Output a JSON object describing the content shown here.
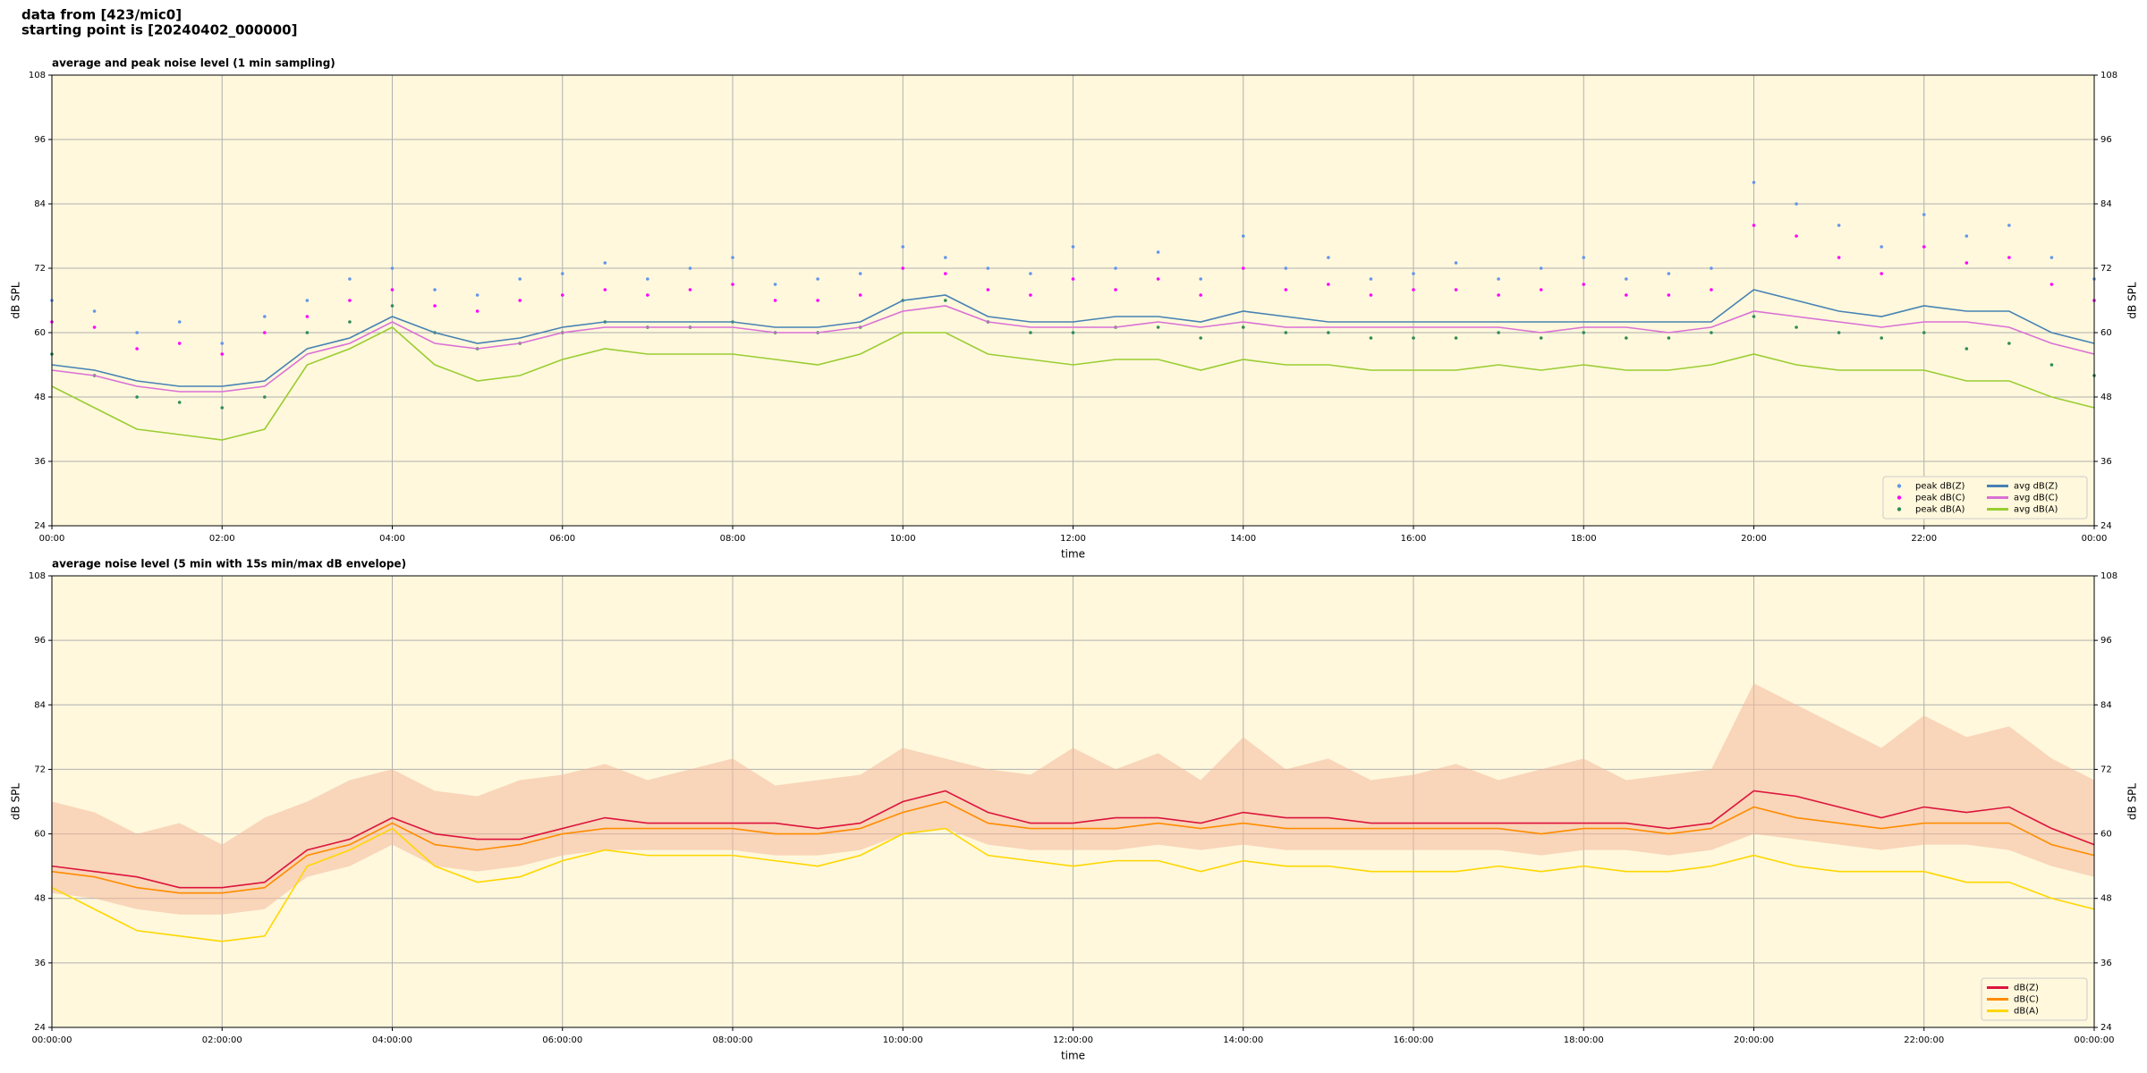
{
  "header": {
    "line1": "data from [423/mic0]",
    "line2": "starting point is [20240402_000000]"
  },
  "chart_data": [
    {
      "type": "line",
      "title": "average and peak noise level (1 min sampling)",
      "xlabel": "time",
      "ylabel": "dB SPL",
      "background": "#fff8dc",
      "grid": true,
      "legend": "lower right",
      "legend_columns": 2,
      "xlim": [
        0,
        24
      ],
      "ylim": [
        24,
        108
      ],
      "yticks": [
        24,
        36,
        48,
        60,
        72,
        84,
        96,
        108
      ],
      "xticks": [
        {
          "value": 0,
          "label": "00:00"
        },
        {
          "value": 2,
          "label": "02:00"
        },
        {
          "value": 4,
          "label": "04:00"
        },
        {
          "value": 6,
          "label": "06:00"
        },
        {
          "value": 8,
          "label": "08:00"
        },
        {
          "value": 10,
          "label": "10:00"
        },
        {
          "value": 12,
          "label": "12:00"
        },
        {
          "value": 14,
          "label": "14:00"
        },
        {
          "value": 16,
          "label": "16:00"
        },
        {
          "value": 18,
          "label": "18:00"
        },
        {
          "value": 20,
          "label": "20:00"
        },
        {
          "value": 22,
          "label": "22:00"
        },
        {
          "value": 24,
          "label": "00:00"
        }
      ],
      "x": [
        0,
        0.5,
        1,
        1.5,
        2,
        2.5,
        3,
        3.5,
        4,
        4.5,
        5,
        5.5,
        6,
        6.5,
        7,
        7.5,
        8,
        8.5,
        9,
        9.5,
        10,
        10.5,
        11,
        11.5,
        12,
        12.5,
        13,
        13.5,
        14,
        14.5,
        15,
        15.5,
        16,
        16.5,
        17,
        17.5,
        18,
        18.5,
        19,
        19.5,
        20,
        20.5,
        21,
        21.5,
        22,
        22.5,
        23,
        23.5,
        24
      ],
      "series": [
        {
          "name": "peak dB(Z)",
          "type": "scatter",
          "color": "#6495ed",
          "values": [
            66,
            64,
            60,
            62,
            58,
            63,
            66,
            70,
            72,
            68,
            67,
            70,
            71,
            73,
            70,
            72,
            74,
            69,
            70,
            71,
            76,
            74,
            72,
            71,
            76,
            72,
            75,
            70,
            78,
            72,
            74,
            70,
            71,
            73,
            70,
            72,
            74,
            70,
            71,
            72,
            88,
            84,
            80,
            76,
            82,
            78,
            80,
            74,
            70
          ]
        },
        {
          "name": "peak dB(C)",
          "type": "scatter",
          "color": "#ff00ff",
          "values": [
            62,
            61,
            57,
            58,
            56,
            60,
            63,
            66,
            68,
            65,
            64,
            66,
            67,
            68,
            67,
            68,
            69,
            66,
            66,
            67,
            72,
            71,
            68,
            67,
            70,
            68,
            70,
            67,
            72,
            68,
            69,
            67,
            68,
            68,
            67,
            68,
            69,
            67,
            67,
            68,
            80,
            78,
            74,
            71,
            76,
            73,
            74,
            69,
            66
          ]
        },
        {
          "name": "peak dB(A)",
          "type": "scatter",
          "color": "#2e8b57",
          "values": [
            56,
            52,
            48,
            47,
            46,
            48,
            60,
            62,
            65,
            60,
            57,
            58,
            60,
            62,
            61,
            61,
            62,
            60,
            60,
            61,
            66,
            66,
            62,
            60,
            60,
            61,
            61,
            59,
            61,
            60,
            60,
            59,
            59,
            59,
            60,
            59,
            60,
            59,
            59,
            60,
            63,
            61,
            60,
            59,
            60,
            57,
            58,
            54,
            52
          ]
        },
        {
          "name": "avg dB(Z)",
          "type": "line",
          "color": "#4682b4",
          "values": [
            54,
            53,
            51,
            50,
            50,
            51,
            57,
            59,
            63,
            60,
            58,
            59,
            61,
            62,
            62,
            62,
            62,
            61,
            61,
            62,
            66,
            67,
            63,
            62,
            62,
            63,
            63,
            62,
            64,
            63,
            62,
            62,
            62,
            62,
            62,
            62,
            62,
            62,
            62,
            62,
            68,
            66,
            64,
            63,
            65,
            64,
            64,
            60,
            58
          ]
        },
        {
          "name": "avg dB(C)",
          "type": "line",
          "color": "#da70d6",
          "values": [
            53,
            52,
            50,
            49,
            49,
            50,
            56,
            58,
            62,
            58,
            57,
            58,
            60,
            61,
            61,
            61,
            61,
            60,
            60,
            61,
            64,
            65,
            62,
            61,
            61,
            61,
            62,
            61,
            62,
            61,
            61,
            61,
            61,
            61,
            61,
            60,
            61,
            61,
            60,
            61,
            64,
            63,
            62,
            61,
            62,
            62,
            61,
            58,
            56
          ]
        },
        {
          "name": "avg dB(A)",
          "type": "line",
          "color": "#9acd32",
          "values": [
            50,
            46,
            42,
            41,
            40,
            42,
            54,
            57,
            61,
            54,
            51,
            52,
            55,
            57,
            56,
            56,
            56,
            55,
            54,
            56,
            60,
            60,
            56,
            55,
            54,
            55,
            55,
            53,
            55,
            54,
            54,
            53,
            53,
            53,
            54,
            53,
            54,
            53,
            53,
            54,
            56,
            54,
            53,
            53,
            53,
            51,
            51,
            48,
            46
          ]
        }
      ]
    },
    {
      "type": "line",
      "title": "average noise level (5 min with 15s min/max dB envelope)",
      "xlabel": "time",
      "ylabel": "dB SPL",
      "background": "#fff8dc",
      "grid": true,
      "legend": "lower right",
      "legend_columns": 1,
      "xlim": [
        0,
        24
      ],
      "ylim": [
        24,
        108
      ],
      "yticks": [
        24,
        36,
        48,
        60,
        72,
        84,
        96,
        108
      ],
      "xticks": [
        {
          "value": 0,
          "label": "00:00:00"
        },
        {
          "value": 2,
          "label": "02:00:00"
        },
        {
          "value": 4,
          "label": "04:00:00"
        },
        {
          "value": 6,
          "label": "06:00:00"
        },
        {
          "value": 8,
          "label": "08:00:00"
        },
        {
          "value": 10,
          "label": "10:00:00"
        },
        {
          "value": 12,
          "label": "12:00:00"
        },
        {
          "value": 14,
          "label": "14:00:00"
        },
        {
          "value": 16,
          "label": "16:00:00"
        },
        {
          "value": 18,
          "label": "18:00:00"
        },
        {
          "value": 20,
          "label": "20:00:00"
        },
        {
          "value": 22,
          "label": "22:00:00"
        },
        {
          "value": 24,
          "label": "00:00:00"
        }
      ],
      "x": [
        0,
        0.5,
        1,
        1.5,
        2,
        2.5,
        3,
        3.5,
        4,
        4.5,
        5,
        5.5,
        6,
        6.5,
        7,
        7.5,
        8,
        8.5,
        9,
        9.5,
        10,
        10.5,
        11,
        11.5,
        12,
        12.5,
        13,
        13.5,
        14,
        14.5,
        15,
        15.5,
        16,
        16.5,
        17,
        17.5,
        18,
        18.5,
        19,
        19.5,
        20,
        20.5,
        21,
        21.5,
        22,
        22.5,
        23,
        23.5,
        24
      ],
      "envelope": {
        "color": "#f4b89c",
        "high": [
          66,
          64,
          60,
          62,
          58,
          63,
          66,
          70,
          72,
          68,
          67,
          70,
          71,
          73,
          70,
          72,
          74,
          69,
          70,
          71,
          76,
          74,
          72,
          71,
          76,
          72,
          75,
          70,
          78,
          72,
          74,
          70,
          71,
          73,
          70,
          72,
          74,
          70,
          71,
          72,
          88,
          84,
          80,
          76,
          82,
          78,
          80,
          74,
          70
        ],
        "low": [
          49,
          48,
          46,
          45,
          45,
          46,
          52,
          54,
          58,
          54,
          53,
          54,
          56,
          57,
          57,
          57,
          57,
          56,
          56,
          57,
          60,
          61,
          58,
          57,
          57,
          57,
          58,
          57,
          58,
          57,
          57,
          57,
          57,
          57,
          57,
          56,
          57,
          57,
          56,
          57,
          60,
          59,
          58,
          57,
          58,
          58,
          57,
          54,
          52
        ]
      },
      "series": [
        {
          "name": "dB(Z)",
          "type": "line",
          "color": "#dc143c",
          "values": [
            54,
            53,
            52,
            50,
            50,
            51,
            57,
            59,
            63,
            60,
            59,
            59,
            61,
            63,
            62,
            62,
            62,
            62,
            61,
            62,
            66,
            68,
            64,
            62,
            62,
            63,
            63,
            62,
            64,
            63,
            63,
            62,
            62,
            62,
            62,
            62,
            62,
            62,
            61,
            62,
            68,
            67,
            65,
            63,
            65,
            64,
            65,
            61,
            58
          ]
        },
        {
          "name": "dB(C)",
          "type": "line",
          "color": "#ff8c00",
          "values": [
            53,
            52,
            50,
            49,
            49,
            50,
            56,
            58,
            62,
            58,
            57,
            58,
            60,
            61,
            61,
            61,
            61,
            60,
            60,
            61,
            64,
            66,
            62,
            61,
            61,
            61,
            62,
            61,
            62,
            61,
            61,
            61,
            61,
            61,
            61,
            60,
            61,
            61,
            60,
            61,
            65,
            63,
            62,
            61,
            62,
            62,
            62,
            58,
            56
          ]
        },
        {
          "name": "dB(A)",
          "type": "line",
          "color": "#ffd700",
          "values": [
            50,
            46,
            42,
            41,
            40,
            41,
            54,
            57,
            61,
            54,
            51,
            52,
            55,
            57,
            56,
            56,
            56,
            55,
            54,
            56,
            60,
            61,
            56,
            55,
            54,
            55,
            55,
            53,
            55,
            54,
            54,
            53,
            53,
            53,
            54,
            53,
            54,
            53,
            53,
            54,
            56,
            54,
            53,
            53,
            53,
            51,
            51,
            48,
            46
          ]
        }
      ]
    }
  ]
}
